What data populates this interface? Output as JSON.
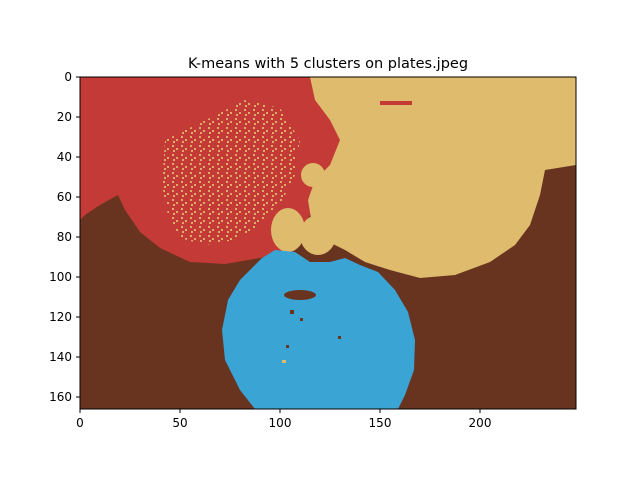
{
  "chart_data": {
    "type": "heatmap",
    "title": "K-means with 5 clusters on plates.jpeg",
    "xlabel": "",
    "ylabel": "",
    "xlim": [
      0,
      248
    ],
    "ylim": [
      166,
      0
    ],
    "x_ticks": [
      0,
      50,
      100,
      150,
      200
    ],
    "y_ticks": [
      0,
      20,
      40,
      60,
      80,
      100,
      120,
      140,
      160
    ],
    "grid": false,
    "legend": "none",
    "clusters": [
      {
        "id": 0,
        "color": "#683420"
      },
      {
        "id": 1,
        "color": "#c33a36"
      },
      {
        "id": 2,
        "color": "#debb6d"
      },
      {
        "id": 3,
        "color": "#3aa4d4"
      },
      {
        "id": 4,
        "color": "#d68f4e"
      }
    ]
  }
}
